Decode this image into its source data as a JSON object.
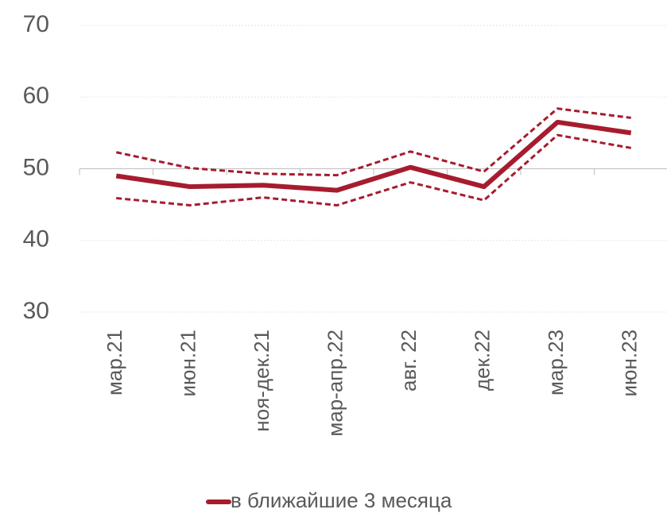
{
  "chart_data": {
    "type": "line",
    "categories": [
      "мар.21",
      "июн.21",
      "ноя-дек.21",
      "мар-апр.22",
      "авг. 22",
      "дек.22",
      "мар.23",
      "июн.23"
    ],
    "series": [
      {
        "name": "в ближайшие 3 месяца",
        "color": "#a61c2e",
        "style": "solid",
        "values": [
          49,
          47.5,
          47.7,
          47,
          50.2,
          47.5,
          56.5,
          55
        ]
      },
      {
        "color": "#a61c2e",
        "style": "dashed",
        "values": [
          52.3,
          50.1,
          49.3,
          49.1,
          52.4,
          49.6,
          58.4,
          57.1
        ]
      },
      {
        "color": "#a61c2e",
        "style": "dashed",
        "values": [
          45.9,
          44.9,
          46,
          44.9,
          48.1,
          45.6,
          54.7,
          52.9
        ]
      }
    ],
    "ylim": [
      30,
      70
    ],
    "yticks": [
      30,
      40,
      50,
      60,
      70
    ],
    "grid": true,
    "xaxis_crosses": 50,
    "legend": "bottom"
  }
}
